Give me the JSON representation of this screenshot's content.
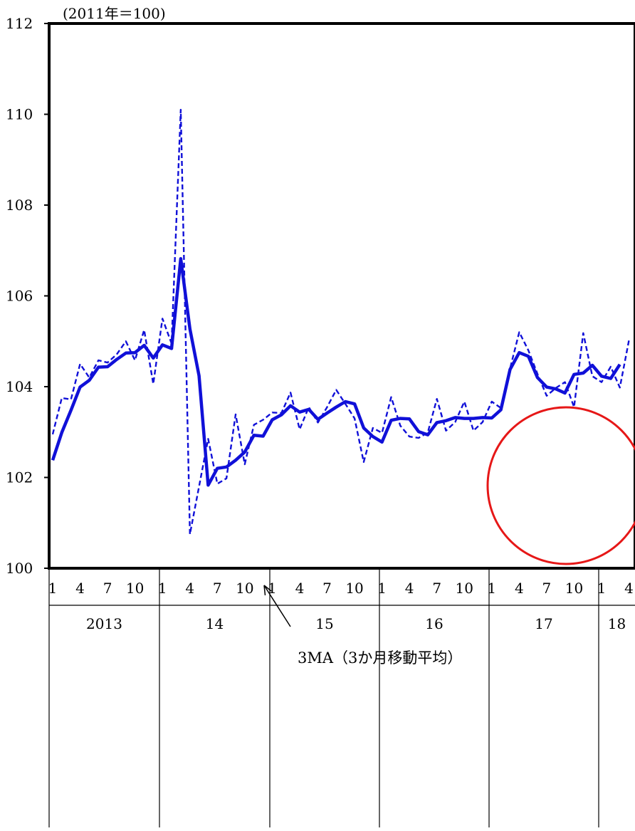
{
  "chart_data": {
    "type": "line",
    "unit_label": "(2011年＝100)",
    "ylim": [
      100,
      112
    ],
    "yticks": [
      100,
      102,
      104,
      106,
      108,
      110,
      112
    ],
    "month_tick_labels": [
      "1",
      "4",
      "7",
      "10",
      "1",
      "4",
      "7",
      "10",
      "1",
      "4",
      "7",
      "10",
      "1",
      "4",
      "7",
      "10",
      "1",
      "4",
      "7",
      "10",
      "1",
      "4"
    ],
    "year_labels": [
      "2013",
      "14",
      "15",
      "16",
      "17",
      "18"
    ],
    "grid": false,
    "annotation": "3MA（3か月移動平均）",
    "series": [
      {
        "style": "dashed",
        "color": "#1010d8",
        "values": [
          102.95,
          103.75,
          103.72,
          104.5,
          104.2,
          104.58,
          104.53,
          104.71,
          105.0,
          104.58,
          105.25,
          104.06,
          105.5,
          104.95,
          110.1,
          100.75,
          101.8,
          102.85,
          101.86,
          101.98,
          103.39,
          102.29,
          103.16,
          103.27,
          103.43,
          103.42,
          103.87,
          103.06,
          103.55,
          103.21,
          103.55,
          103.93,
          103.62,
          103.3,
          102.34,
          103.09,
          102.98,
          103.77,
          103.14,
          102.9,
          102.87,
          102.99,
          103.73,
          103.03,
          103.22,
          103.67,
          103.03,
          103.22,
          103.67,
          103.53,
          104.4,
          105.2,
          104.8,
          104.28,
          103.8,
          103.97,
          104.1,
          103.55,
          105.18,
          104.23,
          104.1,
          104.44,
          103.98,
          105.02
        ]
      },
      {
        "style": "solid",
        "color": "#1010d8",
        "values": [
          102.38,
          102.99,
          103.48,
          103.99,
          104.14,
          104.43,
          104.44,
          104.6,
          104.74,
          104.75,
          104.91,
          104.63,
          104.92,
          104.84,
          106.82,
          105.27,
          104.24,
          101.83,
          102.2,
          102.23,
          102.38,
          102.56,
          102.93,
          102.91,
          103.27,
          103.38,
          103.58,
          103.44,
          103.5,
          103.28,
          103.42,
          103.55,
          103.67,
          103.62,
          103.09,
          102.9,
          102.78,
          103.26,
          103.3,
          103.29,
          103.01,
          102.94,
          103.21,
          103.25,
          103.32,
          103.3,
          103.3,
          103.32,
          103.31,
          103.49,
          104.38,
          104.75,
          104.67,
          104.2,
          103.99,
          103.95,
          103.86,
          104.27,
          104.3,
          104.47,
          104.23,
          104.18,
          104.49
        ]
      }
    ]
  }
}
